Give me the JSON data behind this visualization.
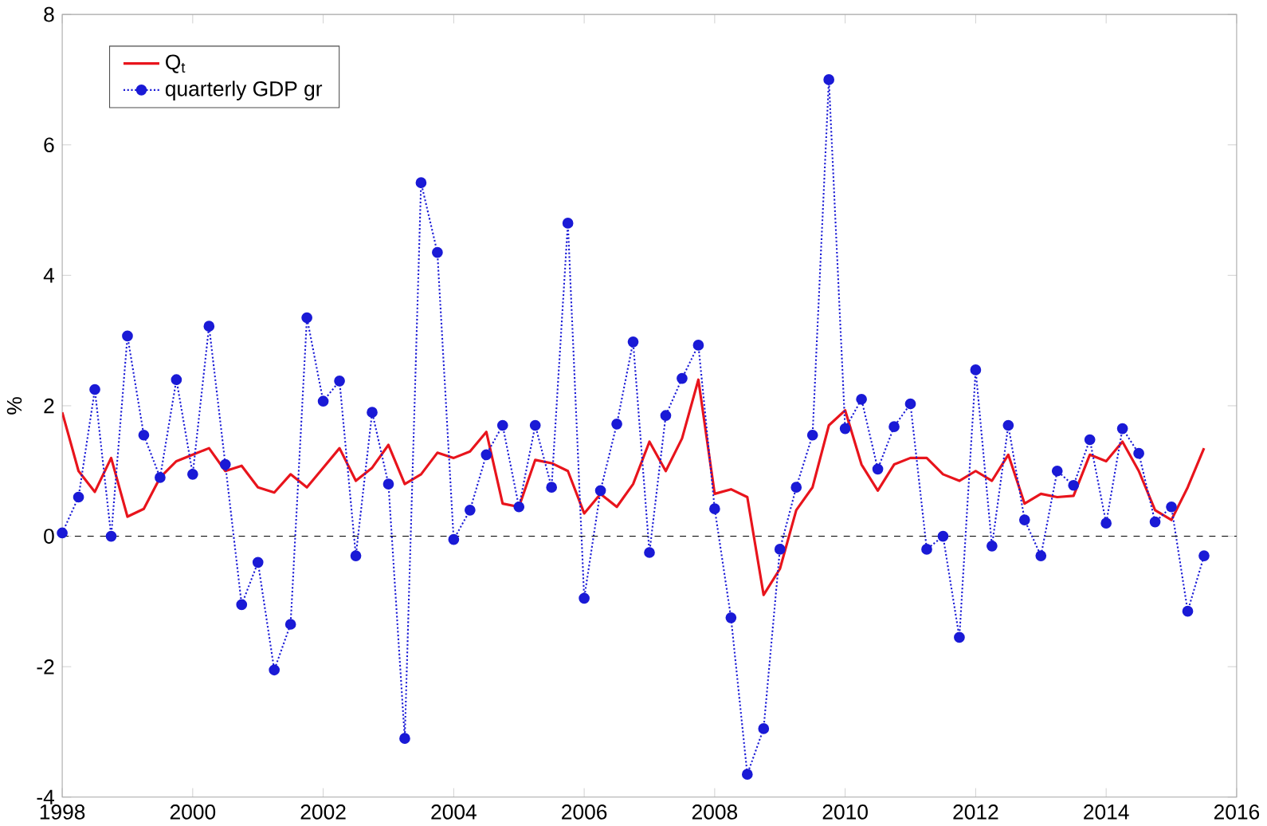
{
  "chart_data": {
    "type": "line",
    "ylabel": "%",
    "x": [
      1998.0,
      1998.25,
      1998.5,
      1998.75,
      1999.0,
      1999.25,
      1999.5,
      1999.75,
      2000.0,
      2000.25,
      2000.5,
      2000.75,
      2001.0,
      2001.25,
      2001.5,
      2001.75,
      2002.0,
      2002.25,
      2002.5,
      2002.75,
      2003.0,
      2003.25,
      2003.5,
      2003.75,
      2004.0,
      2004.25,
      2004.5,
      2004.75,
      2005.0,
      2005.25,
      2005.5,
      2005.75,
      2006.0,
      2006.25,
      2006.5,
      2006.75,
      2007.0,
      2007.25,
      2007.5,
      2007.75,
      2008.0,
      2008.25,
      2008.5,
      2008.75,
      2009.0,
      2009.25,
      2009.5,
      2009.75,
      2010.0,
      2010.25,
      2010.5,
      2010.75,
      2011.0,
      2011.25,
      2011.5,
      2011.75,
      2012.0,
      2012.25,
      2012.5,
      2012.75,
      2013.0,
      2013.25,
      2013.5,
      2013.75,
      2014.0,
      2014.25,
      2014.5,
      2014.75,
      2015.0,
      2015.25,
      2015.5
    ],
    "series": [
      {
        "name": "Q$_{t}$",
        "color": "#e8141c",
        "marker": "none",
        "line_style": "solid",
        "values": [
          1.9,
          1.0,
          0.68,
          1.2,
          0.3,
          0.42,
          0.9,
          1.15,
          1.25,
          1.35,
          1.0,
          1.08,
          0.75,
          0.67,
          0.95,
          0.75,
          1.05,
          1.35,
          0.85,
          1.05,
          1.4,
          0.8,
          0.95,
          1.28,
          1.2,
          1.3,
          1.6,
          0.5,
          0.45,
          1.17,
          1.12,
          1.0,
          0.35,
          0.65,
          0.45,
          0.8,
          1.45,
          1.0,
          1.5,
          2.4,
          0.65,
          0.72,
          0.6,
          -0.9,
          -0.5,
          0.4,
          0.75,
          1.7,
          1.93,
          1.1,
          0.7,
          1.1,
          1.2,
          1.2,
          0.95,
          0.85,
          1.0,
          0.85,
          1.25,
          0.5,
          0.65,
          0.6,
          0.62,
          1.25,
          1.15,
          1.45,
          1.0,
          0.4,
          0.25,
          0.75,
          1.35
        ]
      },
      {
        "name": "quarterly GDP gr",
        "color": "#1a1ad6",
        "marker": "circle",
        "line_style": "dotted",
        "values": [
          0.05,
          0.6,
          2.25,
          0.0,
          3.07,
          1.55,
          0.9,
          2.4,
          0.95,
          3.22,
          1.1,
          -1.05,
          -0.4,
          -2.05,
          -1.35,
          3.35,
          2.07,
          2.38,
          -0.3,
          1.9,
          0.8,
          -3.1,
          5.42,
          4.35,
          -0.05,
          0.4,
          1.25,
          1.7,
          0.45,
          1.7,
          0.75,
          4.8,
          -0.95,
          0.7,
          1.72,
          2.98,
          -0.25,
          1.85,
          2.42,
          2.93,
          0.42,
          -1.25,
          -3.65,
          -2.95,
          -0.2,
          0.75,
          1.55,
          7.0,
          1.65,
          2.1,
          1.03,
          1.68,
          2.03,
          -0.2,
          0.0,
          -1.55,
          2.55,
          -0.15,
          1.7,
          0.25,
          -0.3,
          1.0,
          0.78,
          1.48,
          0.2,
          1.65,
          1.27,
          0.22,
          0.45,
          -1.15,
          -0.3
        ]
      }
    ],
    "xlim": [
      1998,
      2016
    ],
    "xticks": [
      1998,
      2000,
      2002,
      2004,
      2006,
      2008,
      2010,
      2012,
      2014,
      2016
    ],
    "ylim": [
      -4,
      8
    ],
    "yticks": [
      -4,
      -2,
      0,
      2,
      4,
      6,
      8
    ],
    "ref_lines": [
      {
        "axis": "y",
        "value": 0,
        "color": "#000000",
        "line_style": "dashed"
      }
    ],
    "grid": false,
    "legend": "top left"
  }
}
